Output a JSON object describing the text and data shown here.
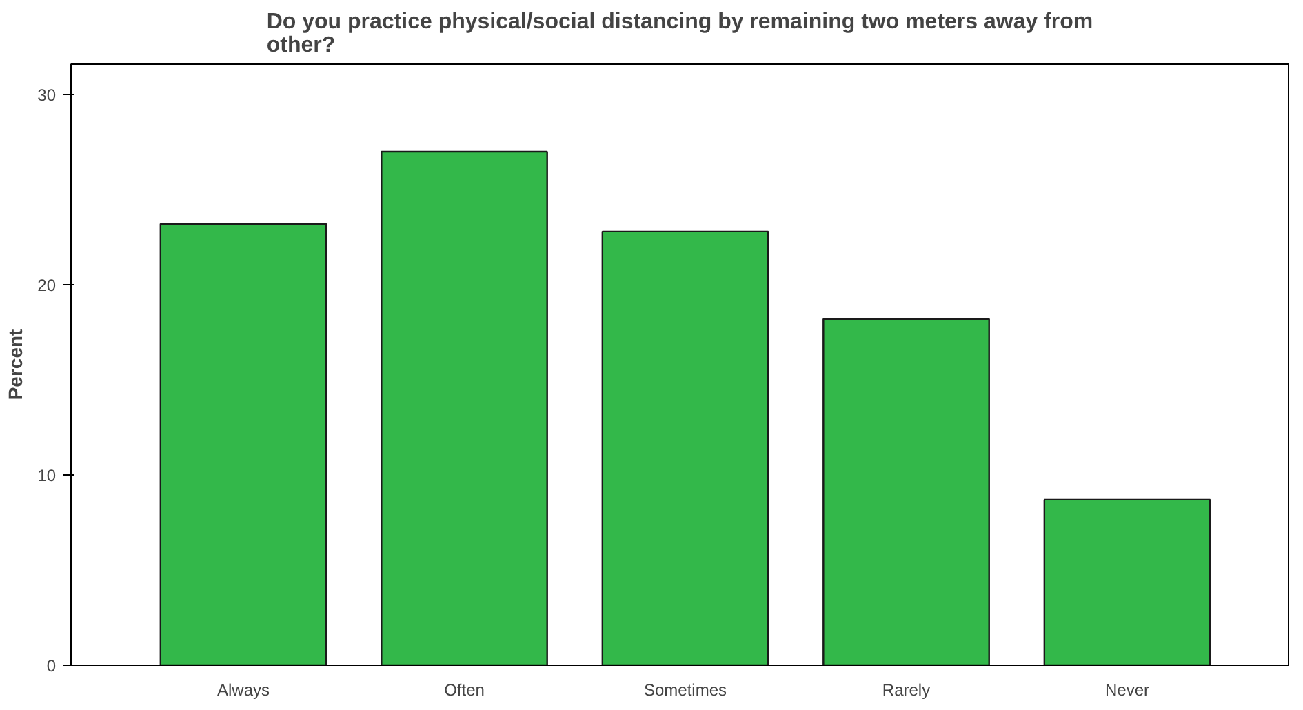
{
  "chart_data": {
    "type": "bar",
    "title": "Do you practice physical/social distancing by remaining two meters away from other?",
    "ylabel": "Percent",
    "categories": [
      "Always",
      "Often",
      "Sometimes",
      "Rarely",
      "Never"
    ],
    "values": [
      23.2,
      27.0,
      22.8,
      18.2,
      8.7
    ],
    "color": "#33b84a",
    "ylim": [
      0,
      31.6
    ],
    "yticks": [
      0,
      10,
      20,
      30
    ],
    "grid": false
  }
}
